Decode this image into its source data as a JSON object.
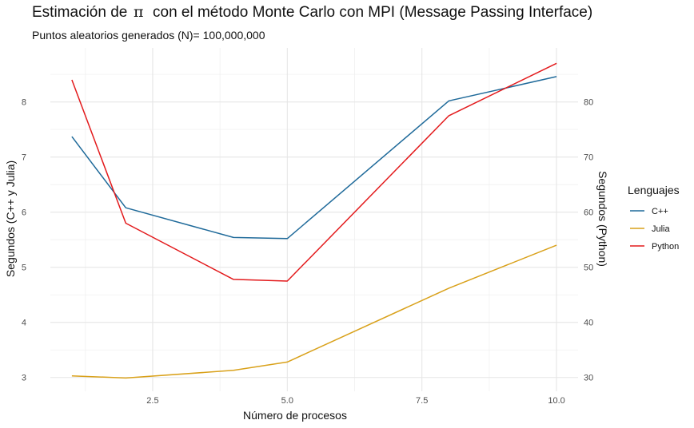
{
  "chart_data": {
    "type": "line",
    "title": "Estimación de  π  con el método Monte Carlo con MPI (Message Passing Interface)",
    "title_parts": [
      "Estimación de",
      "π",
      "con el método Monte Carlo con MPI (Message Passing Interface)"
    ],
    "subtitle": "Puntos aleatorios generados (N)= 100,000,000",
    "xlabel": "Número de procesos",
    "ylabel": "Segundos (C++ y Julia)",
    "ylabel_secondary": "Segundos (Python)",
    "xlim": [
      0.6,
      10.4
    ],
    "ylim": [
      2.75,
      8.98
    ],
    "ylim_secondary": [
      27.5,
      89.8
    ],
    "x_ticks": [
      2.5,
      5.0,
      7.5,
      10.0
    ],
    "x_tick_labels": [
      "2.5",
      "5.0",
      "7.5",
      "10.0"
    ],
    "y_ticks": [
      3,
      4,
      5,
      6,
      7,
      8
    ],
    "y_tick_labels": [
      "3",
      "4",
      "5",
      "6",
      "7",
      "8"
    ],
    "y2_ticks": [
      30,
      40,
      50,
      60,
      70,
      80
    ],
    "y2_tick_labels": [
      "30",
      "40",
      "50",
      "60",
      "70",
      "80"
    ],
    "grid": true,
    "legend": {
      "title": "Lenguajes",
      "position": "right"
    },
    "series": [
      {
        "name": "C++",
        "axis": "left",
        "color": "#1f6a9a",
        "x": [
          1,
          2,
          4,
          5,
          8,
          10
        ],
        "y": [
          7.37,
          6.08,
          5.54,
          5.52,
          8.02,
          8.46
        ]
      },
      {
        "name": "Julia",
        "axis": "left",
        "color": "#d9a11a",
        "x": [
          1,
          2,
          4,
          5,
          8,
          10
        ],
        "y": [
          3.03,
          2.99,
          3.13,
          3.28,
          4.62,
          5.4
        ]
      },
      {
        "name": "Python",
        "axis": "right",
        "color": "#e31a1c",
        "x": [
          1,
          2,
          4,
          5,
          8,
          10
        ],
        "y": [
          84.0,
          58.0,
          47.8,
          47.5,
          77.5,
          87.0
        ]
      }
    ]
  }
}
